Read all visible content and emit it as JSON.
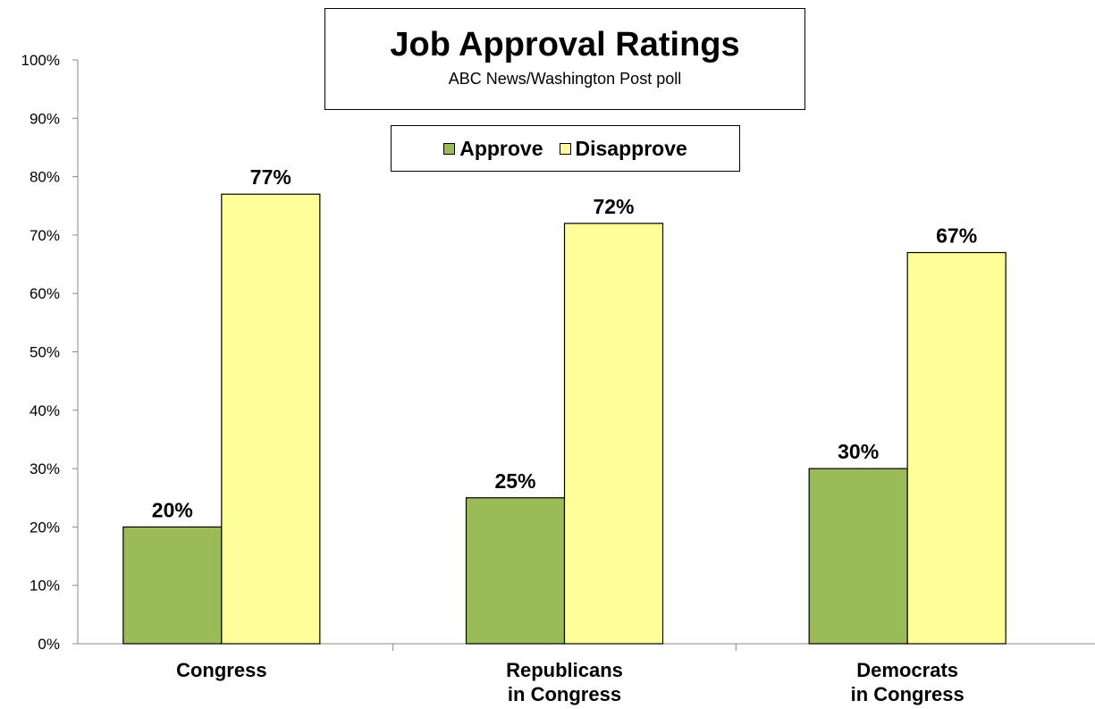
{
  "chart_data": {
    "type": "bar",
    "title": "Job Approval Ratings",
    "subtitle": "ABC News/Washington  Post poll",
    "categories": [
      [
        "Congress"
      ],
      [
        "Republicans",
        "in Congress"
      ],
      [
        "Democrats",
        "in Congress"
      ]
    ],
    "series": [
      {
        "name": "Approve",
        "color": "#9bbb59",
        "values": [
          20,
          25,
          30
        ],
        "labels": [
          "20%",
          "25%",
          "30%"
        ]
      },
      {
        "name": "Disapprove",
        "color": "#ffff99",
        "values": [
          77,
          72,
          67
        ],
        "labels": [
          "77%",
          "72%",
          "67%"
        ]
      }
    ],
    "ylim": [
      0,
      100
    ],
    "yticks": [
      0,
      10,
      20,
      30,
      40,
      50,
      60,
      70,
      80,
      90,
      100
    ],
    "ytick_labels": [
      "0%",
      "10%",
      "20%",
      "30%",
      "40%",
      "50%",
      "60%",
      "70%",
      "80%",
      "90%",
      "100%"
    ],
    "legend_placement": "top-center",
    "grid": false
  }
}
